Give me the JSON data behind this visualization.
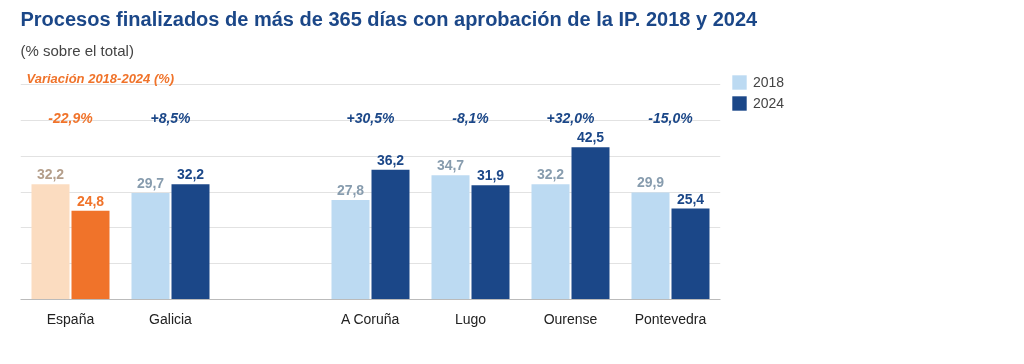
{
  "chart_data": {
    "type": "bar",
    "title": "Procesos finalizados de más de 365 días con aprobación de la IP. 2018 y 2024",
    "subtitle": "(% sobre el total)",
    "categories": [
      "España",
      "Galicia",
      null,
      "A Coruña",
      "Lugo",
      "Ourense",
      "Pontevedra"
    ],
    "series": [
      {
        "name": "2018",
        "color": "#bcdaf2",
        "colors": [
          "#fbdcc0",
          "#bcdaf2",
          "#bcdaf2",
          "#bcdaf2",
          "#bcdaf2",
          "#bcdaf2",
          "#bcdaf2"
        ],
        "values": [
          32.2,
          29.7,
          null,
          27.8,
          34.7,
          32.2,
          29.9
        ],
        "value_labels": [
          "32,2",
          "29,7",
          null,
          "27,8",
          "34,7",
          "32,2",
          "29,9"
        ]
      },
      {
        "name": "2024",
        "color": "#1b4788",
        "colors": [
          "#f0732a",
          "#1b4788",
          "#1b4788",
          "#1b4788",
          "#1b4788",
          "#1b4788",
          "#1b4788"
        ],
        "values": [
          24.8,
          32.2,
          null,
          36.2,
          31.9,
          42.5,
          25.4
        ],
        "value_labels": [
          "24,8",
          "32,2",
          null,
          "36,2",
          "31,9",
          "42,5",
          "25,4"
        ]
      }
    ],
    "tick_labels": "x",
    "grid": "y",
    "legend": "top right",
    "annotations": [
      "Variación 2018-2024 (%)",
      "-22,9%",
      "+8,5%",
      "+30,5%",
      "-8,1%",
      "+32,0%",
      "-15,0%"
    ]
  }
}
